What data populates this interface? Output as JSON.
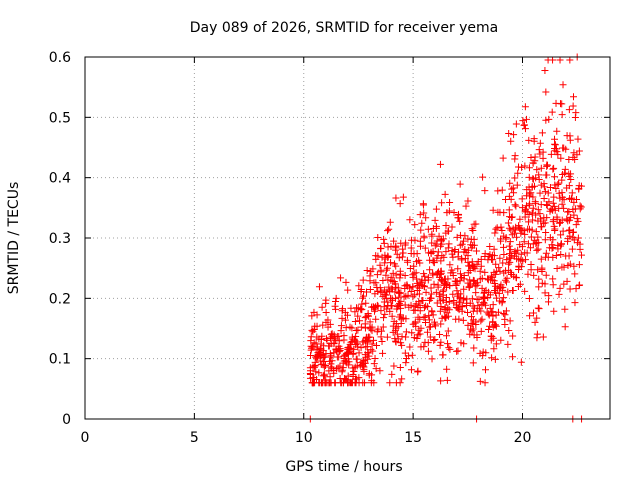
{
  "chart_data": {
    "type": "scatter",
    "title": "Day 089 of 2026, SRMTID for receiver yema",
    "xlabel": "GPS time / hours",
    "ylabel": "SRMTID / TECUs",
    "xlim": [
      0,
      24
    ],
    "ylim": [
      0,
      0.6
    ],
    "xticks": [
      "0",
      "5",
      "10",
      "15",
      "20"
    ],
    "yticks": [
      "0",
      "0.1",
      "0.2",
      "0.3",
      "0.4",
      "0.5",
      "0.6"
    ],
    "grid": true,
    "marker": "+",
    "series_color": "#ff0000",
    "trend_points": [
      {
        "x": 10.3,
        "y": 0.1
      },
      {
        "x": 11.0,
        "y": 0.1
      },
      {
        "x": 12.0,
        "y": 0.12
      },
      {
        "x": 13.0,
        "y": 0.15
      },
      {
        "x": 13.5,
        "y": 0.2
      },
      {
        "x": 14.0,
        "y": 0.24
      },
      {
        "x": 14.5,
        "y": 0.18
      },
      {
        "x": 15.0,
        "y": 0.21
      },
      {
        "x": 16.0,
        "y": 0.22
      },
      {
        "x": 17.0,
        "y": 0.21
      },
      {
        "x": 17.5,
        "y": 0.22
      },
      {
        "x": 18.0,
        "y": 0.23
      },
      {
        "x": 18.5,
        "y": 0.18
      },
      {
        "x": 19.0,
        "y": 0.24
      },
      {
        "x": 19.5,
        "y": 0.29
      },
      {
        "x": 20.0,
        "y": 0.32
      },
      {
        "x": 20.5,
        "y": 0.33
      },
      {
        "x": 21.0,
        "y": 0.35
      },
      {
        "x": 21.5,
        "y": 0.37
      },
      {
        "x": 22.0,
        "y": 0.36
      },
      {
        "x": 22.5,
        "y": 0.34
      }
    ],
    "x_range_hours": [
      10.3,
      22.7
    ],
    "n_points": 1400,
    "zero_points": [
      10.3,
      17.9,
      22.3,
      22.7
    ],
    "max_point": {
      "x": 22.5,
      "y": 0.6
    }
  }
}
